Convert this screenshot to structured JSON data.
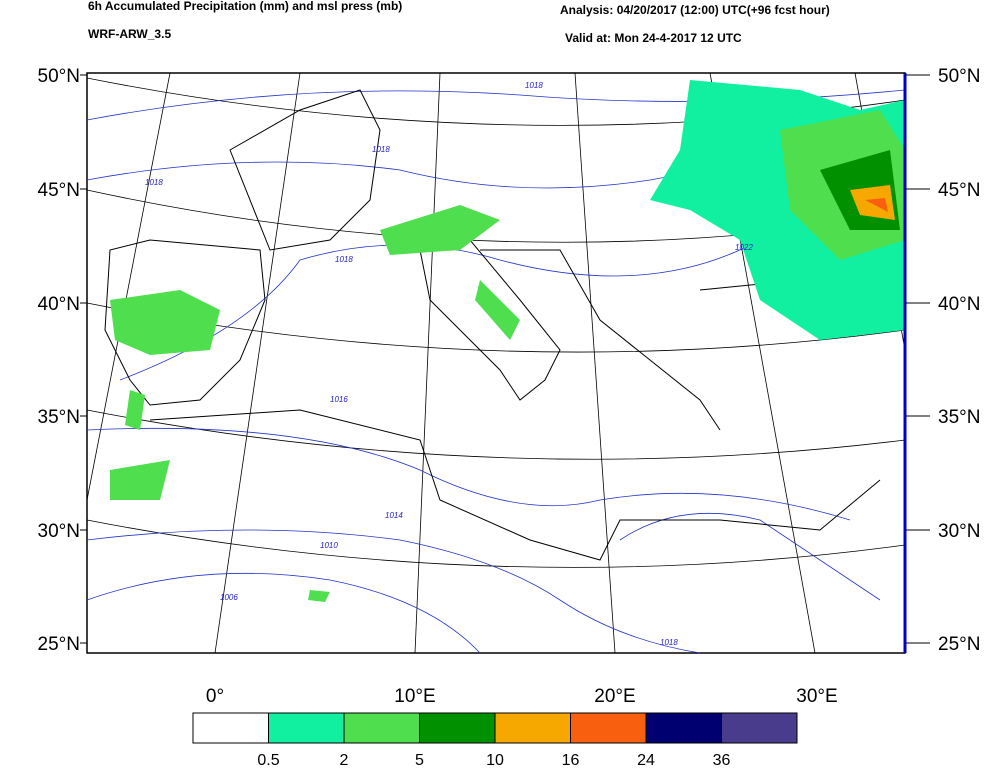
{
  "header": {
    "title": "6h Accumulated Precipitation (mm) and msl press (mb)",
    "model": "WRF-ARW_3.5",
    "analysis": "Analysis: 04/20/2017 (12:00) UTC(+96 fcst hour)",
    "valid": "Valid at: Mon 24-4-2017  12 UTC"
  },
  "map": {
    "lat_labels": [
      "50°N",
      "45°N",
      "40°N",
      "35°N",
      "30°N",
      "25°N"
    ],
    "lon_labels": [
      "0°",
      "10°E",
      "20°E",
      "30°E"
    ],
    "isobar_labels": [
      "1018",
      "1018",
      "1018",
      "1018",
      "1016",
      "1014",
      "1010",
      "1006",
      "1022",
      "1018"
    ]
  },
  "colorbar": {
    "colors": [
      "#ffffff",
      "#10f0a0",
      "#4ede4e",
      "#009000",
      "#f6a800",
      "#f86010",
      "#000070",
      "#4a3c8c"
    ],
    "labels": [
      "0.5",
      "2",
      "5",
      "10",
      "16",
      "24",
      "36"
    ]
  }
}
